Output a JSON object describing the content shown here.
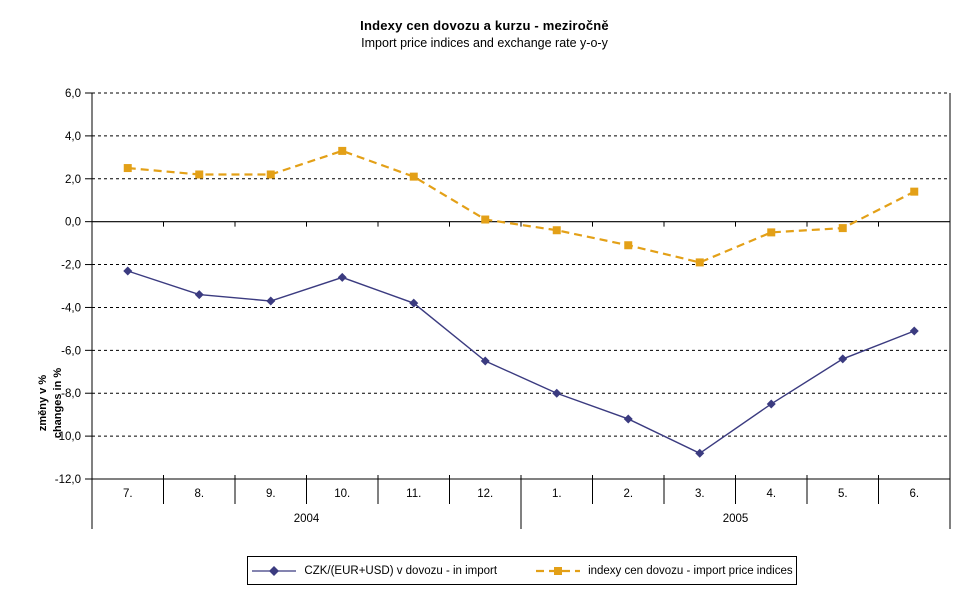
{
  "title": "Indexy cen dovozu a kurzu - meziročně",
  "subtitle": "Import price indices and exchange rate y-o-y",
  "y_axis_title": {
    "line1": "změny v %",
    "line2": "changes in %"
  },
  "chart_data": {
    "type": "line",
    "categories": [
      "7.",
      "8.",
      "9.",
      "10.",
      "11.",
      "12.",
      "1.",
      "2.",
      "3.",
      "4.",
      "5.",
      "6."
    ],
    "year_groups": [
      {
        "label": "2004",
        "span": 6
      },
      {
        "label": "2005",
        "span": 6
      }
    ],
    "series": [
      {
        "name": "CZK/(EUR+USD) v dovozu - in import",
        "color": "#3B3B80",
        "marker": "diamond",
        "line_style": "solid",
        "values": [
          -2.3,
          -3.4,
          -3.7,
          -2.6,
          -3.8,
          -6.5,
          -8.0,
          -9.2,
          -10.8,
          -8.5,
          -6.4,
          -5.1
        ]
      },
      {
        "name": "indexy cen dovozu - import price indices",
        "color": "#E3A017",
        "marker": "square",
        "line_style": "dashed",
        "values": [
          2.5,
          2.2,
          2.2,
          3.3,
          2.1,
          0.1,
          -0.4,
          -1.1,
          -1.9,
          -0.5,
          -0.3,
          1.4
        ]
      }
    ],
    "title": "Indexy cen dovozu a kurzu - meziročně",
    "subtitle": "Import price indices and exchange rate y-o-y",
    "xlabel": "",
    "ylabel": "změny v % / changes in %",
    "ylim": [
      -12,
      6
    ],
    "ytick_step": 2,
    "ytick_labels": [
      "6,0",
      "4,0",
      "2,0",
      "0,0",
      "-2,0",
      "-4,0",
      "-6,0",
      "-8,0",
      "-10,0",
      "-12,0"
    ],
    "grid": "horizontal dashed",
    "legend_position": "bottom"
  }
}
